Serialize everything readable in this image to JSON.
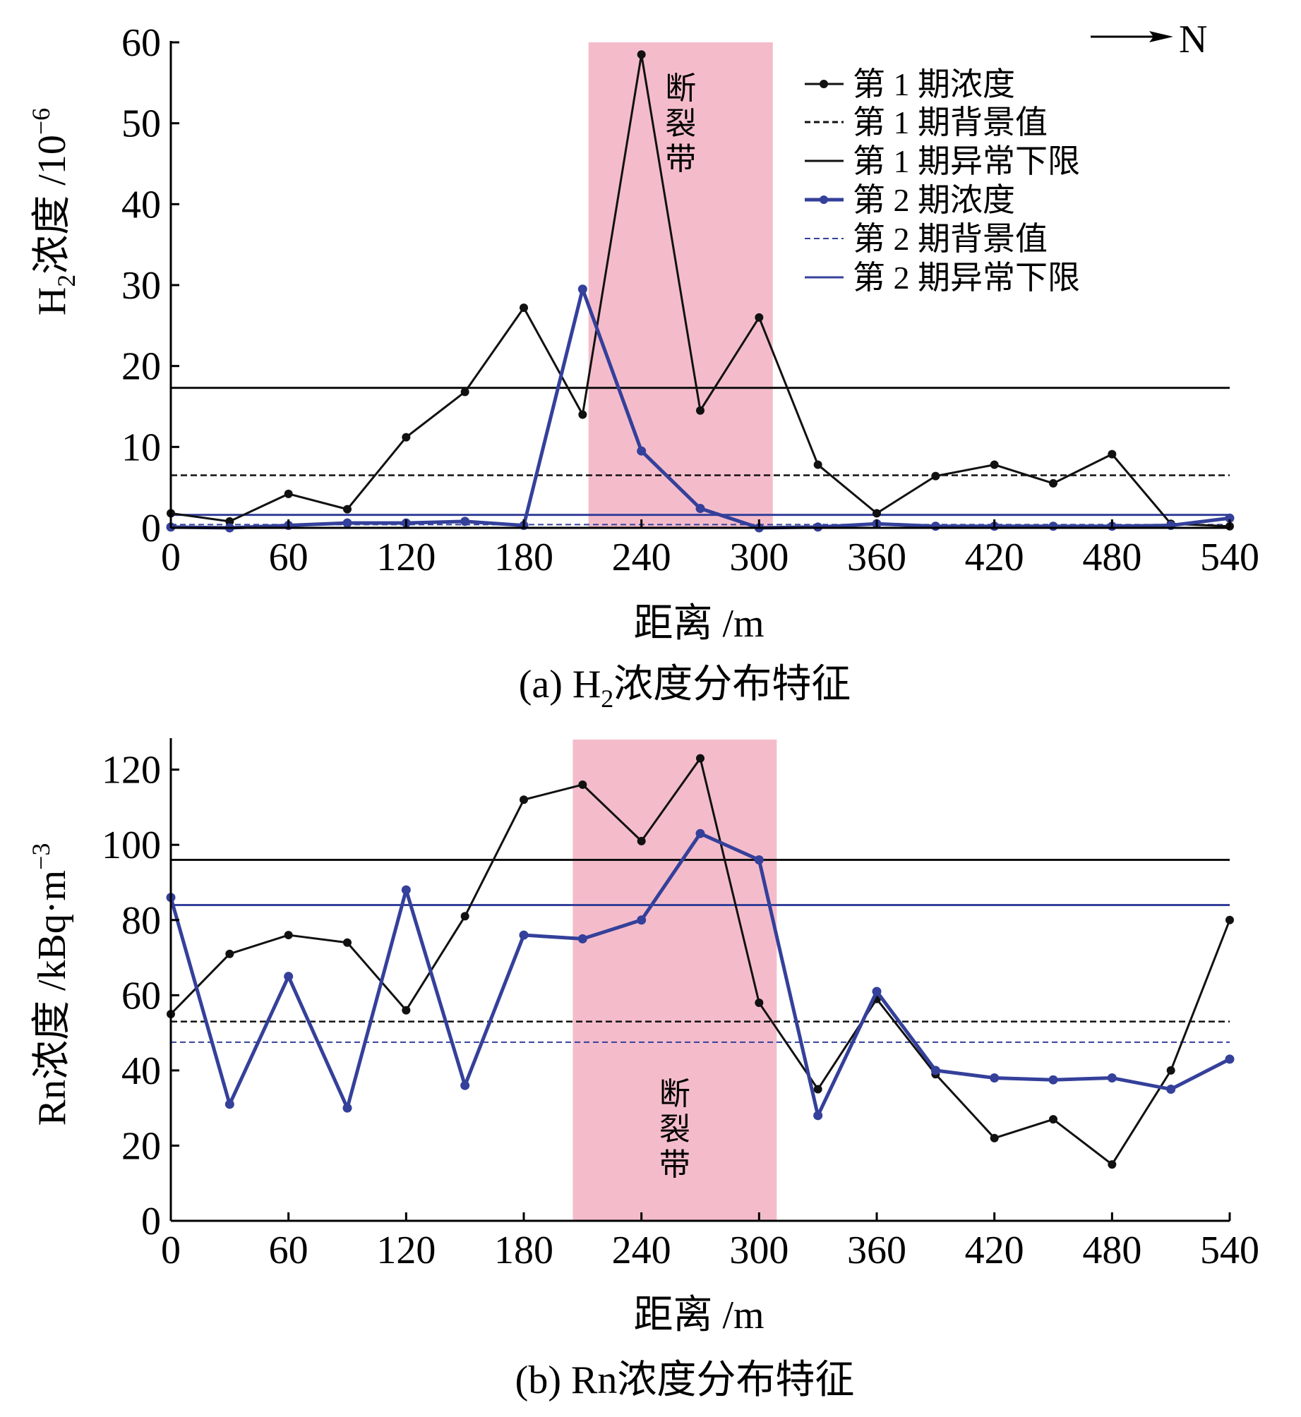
{
  "colors": {
    "series1": "#111111",
    "series2": "#34409a",
    "zone": "#f4bccb"
  },
  "chart_data": [
    {
      "type": "line",
      "panel": "a",
      "caption": {
        "prefix": "(a) H",
        "sub": "2",
        "suffix": "浓度分布特征"
      },
      "ylabel": {
        "prefix": "H",
        "sub": "2",
        "mid": "浓度 /10",
        "sup": "−6"
      },
      "xlabel": "距离 /m",
      "xlim": [
        0,
        540
      ],
      "ylim": [
        0,
        60
      ],
      "xticks": [
        0,
        60,
        120,
        180,
        240,
        300,
        360,
        420,
        480,
        540
      ],
      "yticks": [
        0,
        10,
        20,
        30,
        40,
        50,
        60
      ],
      "north": "N",
      "zone": {
        "label": "断裂带",
        "chars": [
          "断",
          "裂",
          "带"
        ],
        "x_start": 213,
        "x_end": 307
      },
      "x": [
        0,
        30,
        60,
        90,
        120,
        150,
        180,
        210,
        240,
        270,
        300,
        330,
        360,
        390,
        420,
        450,
        480,
        510,
        540
      ],
      "series": [
        {
          "name": "第 1 期浓度",
          "values": [
            1.8,
            0.8,
            4.2,
            2.3,
            11.2,
            16.8,
            27.2,
            14.0,
            58.5,
            14.5,
            26.0,
            7.8,
            1.8,
            6.4,
            7.8,
            5.5,
            9.1,
            0.5,
            0.2
          ]
        },
        {
          "name": "第 2 期浓度",
          "values": [
            0.1,
            0.0,
            0.3,
            0.6,
            0.6,
            0.8,
            0.3,
            29.5,
            9.5,
            2.4,
            0.0,
            0.1,
            0.5,
            0.2,
            0.2,
            0.2,
            0.2,
            0.3,
            1.2
          ]
        }
      ],
      "bg1": 6.5,
      "lim1": 17.3,
      "bg2": 0.4,
      "lim2": 1.6,
      "legend": [
        "第 1 期浓度",
        "第 1 期背景值",
        "第 1 期异常下限",
        "第 2 期浓度",
        "第 2 期背景值",
        "第 2 期异常下限"
      ]
    },
    {
      "type": "line",
      "panel": "b",
      "caption": {
        "prefix": "(b) Rn",
        "sub": "",
        "suffix": "浓度分布特征"
      },
      "ylabel": {
        "prefix": "Rn",
        "sub": "",
        "mid": "浓度 /kBq·m",
        "sup": "−3"
      },
      "xlabel": "距离 /m",
      "xlim": [
        0,
        540
      ],
      "ylim": [
        0,
        128
      ],
      "xticks": [
        0,
        60,
        120,
        180,
        240,
        300,
        360,
        420,
        480,
        540
      ],
      "yticks": [
        0,
        20,
        40,
        60,
        80,
        100,
        120
      ],
      "zone": {
        "label": "断裂带",
        "chars": [
          "断",
          "裂",
          "带"
        ],
        "x_start": 205,
        "x_end": 309
      },
      "x": [
        0,
        30,
        60,
        90,
        120,
        150,
        180,
        210,
        240,
        270,
        300,
        330,
        360,
        390,
        420,
        450,
        480,
        510,
        540
      ],
      "series": [
        {
          "name": "第 1 期浓度",
          "values": [
            55,
            71,
            76,
            74,
            56,
            81,
            112,
            116,
            101,
            123,
            58,
            35,
            59,
            39,
            22,
            27,
            15,
            40,
            80
          ]
        },
        {
          "name": "第 2 期浓度",
          "values": [
            86,
            31,
            65,
            30,
            88,
            36,
            76,
            75,
            80,
            103,
            96,
            28,
            61,
            40,
            38,
            37.5,
            38,
            35,
            43
          ]
        }
      ],
      "bg1": 53,
      "lim1": 96,
      "bg2": 47.5,
      "lim2": 84
    }
  ]
}
